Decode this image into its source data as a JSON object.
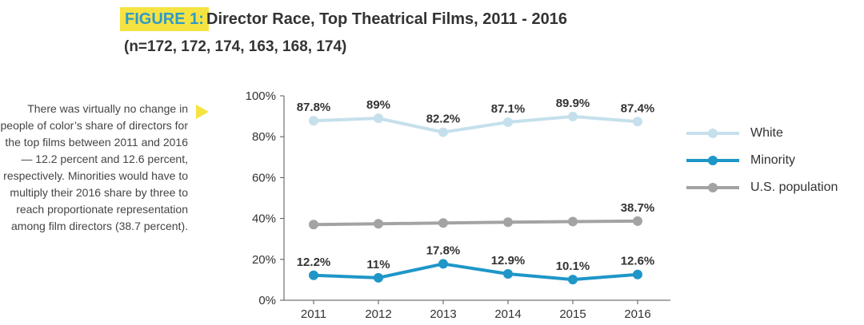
{
  "figure_label": "FIGURE 1:",
  "title": "Director Race, Top Theatrical Films, 2011 - 2016",
  "subtitle": "(n=172, 172, 174, 163, 168, 174)",
  "side_note": "There was virtually no change in people of color’s share of directors for the top films between 2011 and 2016 — 12.2 percent and 12.6 percent, respectively. Minorities would have to multiply their 2016 share by three to reach proportionate representation among film directors (38.7 percent).",
  "colors": {
    "accent_yellow": "#f6e341",
    "accent_blue": "#2f9ac9"
  },
  "chart_data": {
    "type": "line",
    "categories": [
      "2011",
      "2012",
      "2013",
      "2014",
      "2015",
      "2016"
    ],
    "ylim": [
      0,
      100
    ],
    "yticks": [
      "0%",
      "20%",
      "40%",
      "60%",
      "80%",
      "100%"
    ],
    "grid": false,
    "legend_position": "right",
    "series": [
      {
        "name": "White",
        "color": "#c5e0ec",
        "values": [
          87.8,
          89,
          82.2,
          87.1,
          89.9,
          87.4
        ],
        "labels": [
          "87.8%",
          "89%",
          "82.2%",
          "87.1%",
          "89.9%",
          "87.4%"
        ]
      },
      {
        "name": "Minority",
        "color": "#1e96c8",
        "values": [
          12.2,
          11,
          17.8,
          12.9,
          10.1,
          12.6
        ],
        "labels": [
          "12.2%",
          "11%",
          "17.8%",
          "12.9%",
          "10.1%",
          "12.6%"
        ]
      },
      {
        "name": "U.S. population",
        "color": "#a3a3a3",
        "values": [
          37,
          37.4,
          37.8,
          38.2,
          38.5,
          38.7
        ],
        "labels": [
          "",
          "",
          "",
          "",
          "",
          "38.7%"
        ]
      }
    ]
  }
}
